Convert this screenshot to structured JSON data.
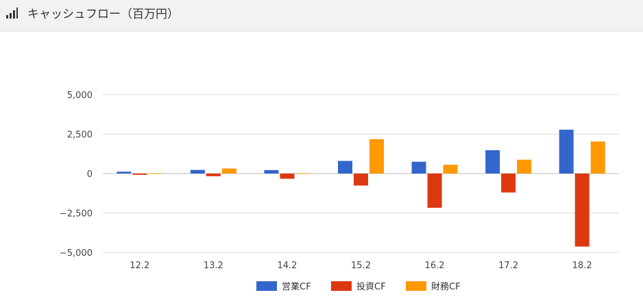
{
  "header": {
    "title": "キャッシュフロー（百万円）",
    "icon": "bar-chart-icon"
  },
  "chart_data": {
    "type": "bar",
    "title": "",
    "xlabel": "",
    "ylabel": "",
    "categories": [
      "12.2",
      "13.2",
      "14.2",
      "15.2",
      "16.2",
      "17.2",
      "18.2"
    ],
    "series": [
      {
        "name": "営業CF",
        "color": "#3366cc",
        "values": [
          120,
          230,
          220,
          800,
          750,
          1480,
          2780
        ]
      },
      {
        "name": "投資CF",
        "color": "#dc3912",
        "values": [
          -80,
          -170,
          -330,
          -760,
          -2170,
          -1200,
          -4630
        ]
      },
      {
        "name": "財務CF",
        "color": "#ff9900",
        "values": [
          20,
          320,
          20,
          2180,
          560,
          880,
          2030
        ]
      }
    ],
    "ylim": [
      -5000,
      5000
    ],
    "yticks": [
      5000,
      2500,
      0,
      -2500,
      -5000
    ],
    "ytick_labels": [
      "5,000",
      "2,500",
      "0",
      "−2,500",
      "−5,000"
    ],
    "grid": true,
    "legend": "bottom"
  }
}
